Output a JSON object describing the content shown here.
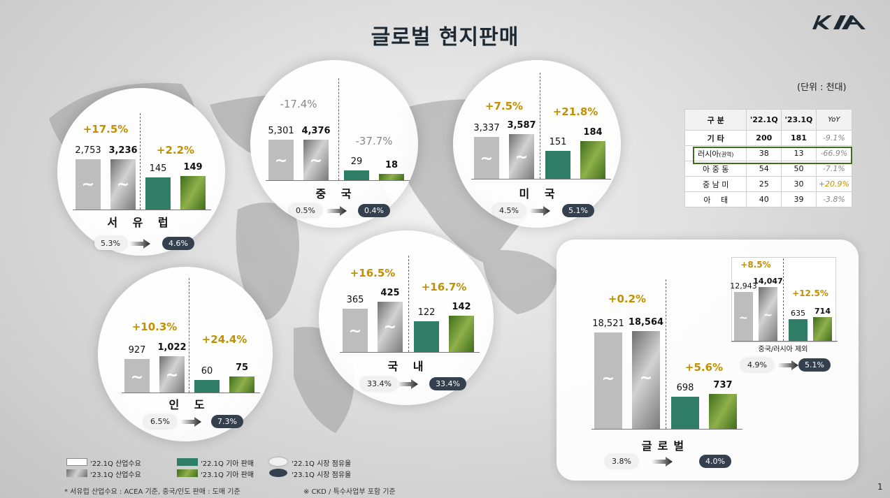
{
  "title": "글로벌 현지판매",
  "unit": "(단위 : 천대)",
  "page_number": "1",
  "colors": {
    "industry_22": "#bdbdbd",
    "industry_23": "#8a8a8a",
    "kia_22": "#2f7c67",
    "kia_23": "#5b8124",
    "share_old_bg": "#f1f1f1",
    "share_new_bg": "#34404e",
    "growth_pos": "#c09000",
    "growth_neg": "#888888"
  },
  "chart_data": [
    {
      "type": "bar",
      "region": "서 유 럽",
      "categories": [
        "'22.1Q 산업수요",
        "'23.1Q 산업수요",
        "'22.1Q 기아 판매",
        "'23.1Q 기아 판매"
      ],
      "values": [
        2753,
        3236,
        145,
        149
      ],
      "value_labels": [
        "2,753",
        "3,236",
        "145",
        "149"
      ],
      "industry_growth": "+17.5%",
      "kia_growth": "+2.2%",
      "share_22": "5.3%",
      "share_23": "4.6%"
    },
    {
      "type": "bar",
      "region": "중 국",
      "categories": [
        "'22.1Q 산업수요",
        "'23.1Q 산업수요",
        "'22.1Q 기아 판매",
        "'23.1Q 기아 판매"
      ],
      "values": [
        5301,
        4376,
        29,
        18
      ],
      "value_labels": [
        "5,301",
        "4,376",
        "29",
        "18"
      ],
      "industry_growth": "-17.4%",
      "kia_growth": "-37.7%",
      "share_22": "0.5%",
      "share_23": "0.4%"
    },
    {
      "type": "bar",
      "region": "미 국",
      "categories": [
        "'22.1Q 산업수요",
        "'23.1Q 산업수요",
        "'22.1Q 기아 판매",
        "'23.1Q 기아 판매"
      ],
      "values": [
        3337,
        3587,
        151,
        184
      ],
      "value_labels": [
        "3,337",
        "3,587",
        "151",
        "184"
      ],
      "industry_growth": "+7.5%",
      "kia_growth": "+21.8%",
      "share_22": "4.5%",
      "share_23": "5.1%"
    },
    {
      "type": "bar",
      "region": "인 도",
      "categories": [
        "'22.1Q 산업수요",
        "'23.1Q 산업수요",
        "'22.1Q 기아 판매",
        "'23.1Q 기아 판매"
      ],
      "values": [
        927,
        1022,
        60,
        75
      ],
      "value_labels": [
        "927",
        "1,022",
        "60",
        "75"
      ],
      "industry_growth": "+10.3%",
      "kia_growth": "+24.4%",
      "share_22": "6.5%",
      "share_23": "7.3%"
    },
    {
      "type": "bar",
      "region": "국 내",
      "categories": [
        "'22.1Q 산업수요",
        "'23.1Q 산업수요",
        "'22.1Q 기아 판매",
        "'23.1Q 기아 판매"
      ],
      "values": [
        365,
        425,
        122,
        142
      ],
      "value_labels": [
        "365",
        "425",
        "122",
        "142"
      ],
      "industry_growth": "+16.5%",
      "kia_growth": "+16.7%",
      "share_22": "33.4%",
      "share_23": "33.4%"
    },
    {
      "type": "bar",
      "region": "글로벌",
      "categories": [
        "'22.1Q 산업수요",
        "'23.1Q 산업수요",
        "'22.1Q 기아 판매",
        "'23.1Q 기아 판매"
      ],
      "values": [
        18521,
        18564,
        698,
        737
      ],
      "value_labels": [
        "18,521",
        "18,564",
        "698",
        "737"
      ],
      "industry_growth": "+0.2%",
      "kia_growth": "+5.6%",
      "share_22": "3.8%",
      "share_23": "4.0%"
    },
    {
      "type": "bar",
      "region": "중국/러시아 제외",
      "categories": [
        "'22.1Q 산업수요",
        "'23.1Q 산업수요",
        "'22.1Q 기아 판매",
        "'23.1Q 기아 판매"
      ],
      "values": [
        12943,
        14047,
        635,
        714
      ],
      "value_labels": [
        "12,943",
        "14,047",
        "635",
        "714"
      ],
      "industry_growth": "+8.5%",
      "kia_growth": "+12.5%",
      "share_22": "4.9%",
      "share_23": "5.1%"
    },
    {
      "type": "table",
      "columns": [
        "구 분",
        "'22.1Q",
        "'23.1Q",
        "YoY"
      ],
      "rows": [
        {
          "label": "기 타",
          "v22": "200",
          "v23": "181",
          "yoy": "-9.1%"
        },
        {
          "label_main": "러시아",
          "label_sub": "(권역)",
          "v22": "38",
          "v23": "13",
          "yoy": "-66.9%"
        },
        {
          "label": "아 중 동",
          "v22": "54",
          "v23": "50",
          "yoy": "-7.1%"
        },
        {
          "label": "중 남 미",
          "v22": "25",
          "v23": "30",
          "yoy": "+20.9%"
        },
        {
          "label": "아　 태",
          "v22": "40",
          "v23": "39",
          "yoy": "-3.8%"
        }
      ]
    }
  ],
  "legend": [
    {
      "label": "'22.1Q 산업수요"
    },
    {
      "label": "'23.1Q 산업수요"
    },
    {
      "label": "'22.1Q 기아 판매"
    },
    {
      "label": "'23.1Q 기아 판매"
    },
    {
      "label": "'22.1Q 시장 점유율"
    },
    {
      "label": "'23.1Q 시장 점유율"
    }
  ],
  "footnotes": {
    "note1": "* 서유럽 산업수요 : ACEA 기준,  중국/인도 판매 : 도매 기준",
    "note2": "※ CKD / 특수사업부 포함 기준"
  }
}
